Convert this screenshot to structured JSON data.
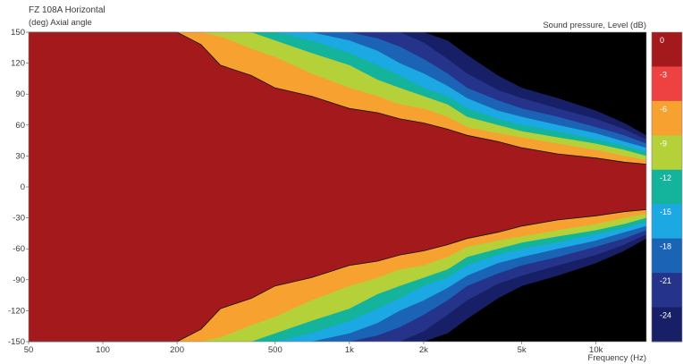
{
  "chart_data": {
    "type": "heatmap",
    "title": "FZ 108A  Horizontal",
    "ylabel": "(deg)  Axial angle",
    "xlabel": "Frequency  (Hz)",
    "colorbar_label": "Sound pressure, Level  (dB)",
    "x_scale": "log",
    "xlim": [
      50,
      16000
    ],
    "ylim": [
      -150,
      150
    ],
    "x_ticks": [
      {
        "value": 50,
        "label": "50"
      },
      {
        "value": 100,
        "label": "100"
      },
      {
        "value": 200,
        "label": "200"
      },
      {
        "value": 500,
        "label": "500"
      },
      {
        "value": 1000,
        "label": "1k"
      },
      {
        "value": 2000,
        "label": "2k"
      },
      {
        "value": 5000,
        "label": "5k"
      },
      {
        "value": 10000,
        "label": "10k"
      }
    ],
    "y_ticks": [
      {
        "value": 150,
        "label": "150"
      },
      {
        "value": 120,
        "label": "120"
      },
      {
        "value": 90,
        "label": "90"
      },
      {
        "value": 60,
        "label": "60"
      },
      {
        "value": 30,
        "label": "30"
      },
      {
        "value": 0,
        "label": "0"
      },
      {
        "value": -30,
        "label": "-30"
      },
      {
        "value": -60,
        "label": "-60"
      },
      {
        "value": -90,
        "label": "-90"
      },
      {
        "value": -120,
        "label": "-120"
      },
      {
        "value": -150,
        "label": "-150"
      }
    ],
    "colorbar": [
      {
        "label": "0",
        "color": "#a4191c"
      },
      {
        "label": "-3",
        "color": "#ee4242"
      },
      {
        "label": "-6",
        "color": "#f7a131"
      },
      {
        "label": "-9",
        "color": "#b5d13a"
      },
      {
        "label": "-12",
        "color": "#14b39b"
      },
      {
        "label": "-15",
        "color": "#1ba8e3"
      },
      {
        "label": "-18",
        "color": "#1a63b5"
      },
      {
        "label": "-21",
        "color": "#25348a"
      },
      {
        "label": "-24",
        "color": "#172067"
      }
    ],
    "below_range_color": "#000000",
    "contour_frequencies": [
      50,
      100,
      150,
      200,
      250,
      300,
      400,
      500,
      700,
      1000,
      1300,
      1600,
      2000,
      2500,
      3000,
      4000,
      5000,
      7000,
      10000,
      13000,
      16000
    ],
    "contours": [
      {
        "level": -3,
        "angles": [
          150,
          150,
          150,
          150,
          138,
          118,
          108,
          96,
          88,
          76,
          72,
          66,
          62,
          56,
          50,
          44,
          38,
          32,
          28,
          24,
          22
        ]
      },
      {
        "level": -6,
        "angles": [
          150,
          150,
          150,
          150,
          150,
          146,
          134,
          126,
          110,
          96,
          88,
          80,
          76,
          68,
          58,
          52,
          48,
          42,
          36,
          30,
          26
        ]
      },
      {
        "level": -9,
        "angles": [
          150,
          150,
          150,
          150,
          150,
          150,
          150,
          142,
          130,
          118,
          104,
          96,
          88,
          80,
          68,
          60,
          54,
          48,
          42,
          36,
          30
        ]
      },
      {
        "level": -12,
        "angles": [
          150,
          150,
          150,
          150,
          150,
          150,
          150,
          150,
          142,
          130,
          118,
          108,
          96,
          88,
          76,
          66,
          60,
          54,
          46,
          40,
          34
        ]
      },
      {
        "level": -15,
        "angles": [
          150,
          150,
          150,
          150,
          150,
          150,
          150,
          150,
          150,
          142,
          132,
          120,
          110,
          98,
          86,
          74,
          68,
          60,
          52,
          44,
          38
        ]
      },
      {
        "level": -18,
        "angles": [
          150,
          150,
          150,
          150,
          150,
          150,
          150,
          150,
          150,
          150,
          144,
          136,
          124,
          110,
          96,
          84,
          76,
          68,
          58,
          50,
          42
        ]
      },
      {
        "level": -21,
        "angles": [
          150,
          150,
          150,
          150,
          150,
          150,
          150,
          150,
          150,
          150,
          150,
          150,
          140,
          124,
          110,
          94,
          86,
          76,
          66,
          56,
          46
        ]
      },
      {
        "level": -24,
        "angles": [
          150,
          150,
          150,
          150,
          150,
          150,
          150,
          150,
          150,
          150,
          150,
          150,
          150,
          142,
          128,
          108,
          96,
          86,
          74,
          62,
          50
        ]
      }
    ]
  }
}
